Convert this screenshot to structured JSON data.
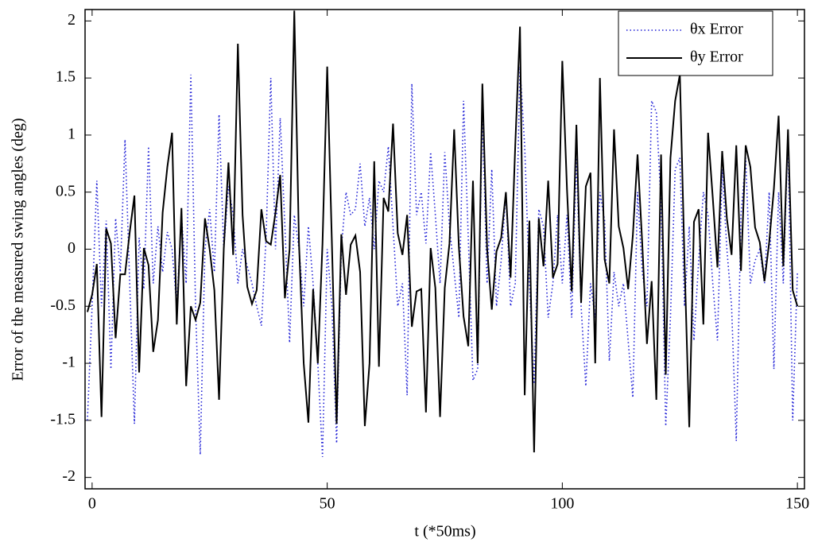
{
  "chart_data": {
    "type": "line",
    "xlabel": "t (*50ms)",
    "ylabel": "Error of the measured swing angles (deg)",
    "x": [
      -1,
      0,
      1,
      2,
      3,
      4,
      5,
      6,
      7,
      8,
      9,
      10,
      11,
      12,
      13,
      14,
      15,
      16,
      17,
      18,
      19,
      20,
      21,
      22,
      23,
      24,
      25,
      26,
      27,
      28,
      29,
      30,
      31,
      32,
      33,
      34,
      35,
      36,
      37,
      38,
      39,
      40,
      41,
      42,
      43,
      44,
      45,
      46,
      47,
      48,
      49,
      50,
      51,
      52,
      53,
      54,
      55,
      56,
      57,
      58,
      59,
      60,
      61,
      62,
      63,
      64,
      65,
      66,
      67,
      68,
      69,
      70,
      71,
      72,
      73,
      74,
      75,
      76,
      77,
      78,
      79,
      80,
      81,
      82,
      83,
      84,
      85,
      86,
      87,
      88,
      89,
      90,
      91,
      92,
      93,
      94,
      95,
      96,
      97,
      98,
      99,
      100,
      101,
      102,
      103,
      104,
      105,
      106,
      107,
      108,
      109,
      110,
      111,
      112,
      113,
      114,
      115,
      116,
      117,
      118,
      119,
      120,
      121,
      122,
      123,
      124,
      125,
      126,
      127,
      128,
      129,
      130,
      131,
      132,
      133,
      134,
      135,
      136,
      137,
      138,
      139,
      140,
      141,
      142,
      143,
      144,
      145,
      146,
      147,
      148,
      149,
      150
    ],
    "series": [
      {
        "name": "θx Error",
        "color": "#1f1fd6",
        "dash": "dotted",
        "values": [
          -1.5,
          -0.5,
          0.6,
          -0.5,
          0.25,
          -1.05,
          0.27,
          -0.2,
          0.96,
          -0.3,
          -1.53,
          0.1,
          -0.35,
          0.9,
          -0.3,
          0.2,
          -0.2,
          0.15,
          0.0,
          -0.5,
          0.3,
          -0.3,
          1.53,
          -0.5,
          -1.8,
          0.0,
          0.35,
          -0.2,
          1.18,
          0.0,
          0.55,
          0.3,
          -0.3,
          0.0,
          -0.15,
          -0.3,
          -0.5,
          -0.67,
          0.1,
          1.5,
          0.0,
          1.15,
          0.2,
          -0.82,
          0.3,
          0.0,
          -0.5,
          0.2,
          -0.3,
          -1.0,
          -1.82,
          0.0,
          -0.5,
          -1.7,
          0.0,
          0.5,
          0.3,
          0.35,
          0.75,
          0.2,
          0.45,
          0.0,
          0.6,
          0.5,
          0.9,
          0.2,
          -0.5,
          -0.3,
          -1.28,
          1.45,
          0.3,
          0.5,
          0.05,
          0.85,
          0.3,
          -0.3,
          0.85,
          0.2,
          -0.2,
          -0.6,
          1.3,
          0.1,
          -1.15,
          -1.05,
          1.2,
          -0.3,
          0.7,
          -0.5,
          -0.1,
          0.5,
          -0.5,
          -0.3,
          1.6,
          0.9,
          -0.3,
          -1.18,
          0.35,
          0.2,
          -0.6,
          -0.3,
          0.3,
          -0.3,
          0.3,
          -0.6,
          0.8,
          -0.5,
          -1.2,
          -0.3,
          -0.6,
          0.5,
          0.25,
          -0.98,
          -0.2,
          -0.5,
          -0.3,
          -0.8,
          -1.3,
          0.5,
          -0.2,
          -0.5,
          1.3,
          1.2,
          0.4,
          -1.55,
          -0.6,
          0.7,
          0.8,
          -0.5,
          0.2,
          -0.8,
          -0.1,
          0.5,
          0.3,
          -0.3,
          -0.8,
          0.7,
          0.0,
          -0.5,
          -1.68,
          0.3,
          0.8,
          -0.3,
          -0.1,
          0.0,
          -0.3,
          0.5,
          -1.05,
          0.5,
          -0.3,
          1.0,
          -1.5,
          -0.2
        ]
      },
      {
        "name": "θy Error",
        "color": "#000000",
        "dash": "solid",
        "values": [
          -0.55,
          -0.4,
          -0.13,
          -1.47,
          0.18,
          0.05,
          -0.78,
          -0.22,
          -0.22,
          0.15,
          0.47,
          -1.08,
          0.01,
          -0.14,
          -0.9,
          -0.62,
          0.32,
          0.72,
          1.02,
          -0.66,
          0.36,
          -1.2,
          -0.5,
          -0.62,
          -0.47,
          0.27,
          0.0,
          -0.36,
          -1.32,
          0.0,
          0.76,
          -0.05,
          1.8,
          0.3,
          -0.33,
          -0.48,
          -0.36,
          0.35,
          0.07,
          0.04,
          0.32,
          0.65,
          -0.43,
          0.0,
          2.09,
          0.05,
          -1.0,
          -1.52,
          -0.35,
          -1.0,
          0.05,
          1.6,
          0.05,
          -1.53,
          0.13,
          -0.4,
          0.04,
          0.12,
          -0.2,
          -1.55,
          -1.0,
          0.77,
          -1.03,
          0.45,
          0.33,
          1.1,
          0.14,
          -0.05,
          0.3,
          -0.68,
          -0.37,
          -0.35,
          -1.43,
          0.01,
          -0.34,
          -1.47,
          -0.34,
          0.05,
          1.05,
          0.02,
          -0.59,
          -0.85,
          0.6,
          -1.0,
          1.45,
          0.01,
          -0.53,
          -0.02,
          0.1,
          0.5,
          -0.25,
          0.92,
          1.95,
          -1.28,
          0.25,
          -1.78,
          0.27,
          -0.15,
          0.6,
          -0.25,
          -0.13,
          1.65,
          0.52,
          -0.37,
          1.09,
          -0.47,
          0.55,
          0.67,
          -1.0,
          1.5,
          -0.09,
          -0.3,
          1.05,
          0.2,
          0.01,
          -0.35,
          0.12,
          0.83,
          0.05,
          -0.83,
          -0.28,
          -1.32,
          0.83,
          -1.1,
          0.8,
          1.3,
          1.53,
          -0.12,
          -1.56,
          0.24,
          0.35,
          -0.66,
          1.02,
          0.45,
          -0.16,
          0.86,
          0.27,
          -0.05,
          0.91,
          -0.19,
          0.91,
          0.72,
          0.19,
          0.06,
          -0.28,
          0.06,
          0.53,
          1.17,
          -0.15,
          1.05,
          -0.36,
          -0.5
        ]
      }
    ],
    "xlim": [
      -1.5,
      151.5
    ],
    "xticks": [
      0,
      50,
      100,
      150
    ],
    "ylim": [
      -2.1,
      2.1
    ],
    "yticks": [
      -2,
      -1.5,
      -1,
      -0.5,
      0,
      0.5,
      1,
      1.5,
      2
    ],
    "grid": false,
    "legend": "upper right"
  }
}
